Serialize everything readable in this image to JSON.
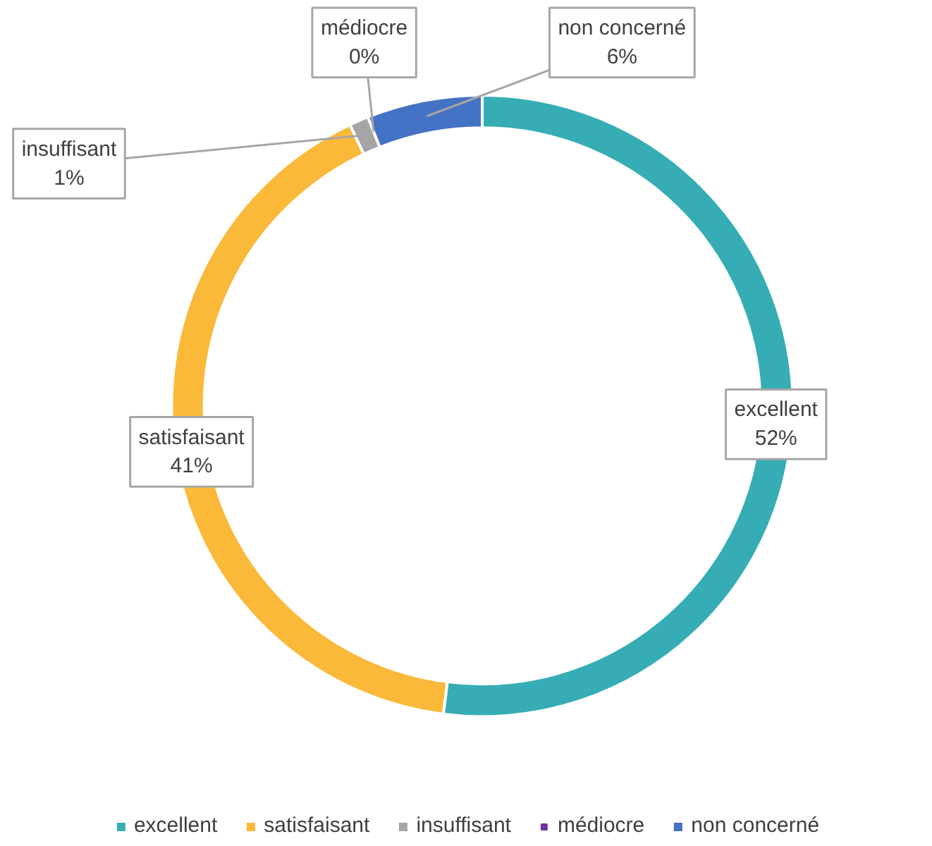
{
  "chart_data": {
    "type": "donut",
    "categories": [
      "excellent",
      "satisfaisant",
      "insuffisant",
      "médiocre",
      "non concerné"
    ],
    "values": [
      52,
      41,
      1,
      0,
      6
    ],
    "value_labels": [
      "52%",
      "41%",
      "1%",
      "0%",
      "6%"
    ],
    "colors": [
      "#36adb5",
      "#fbb93a",
      "#a5a5a5",
      "#7030a0",
      "#4472c4"
    ],
    "legend": "bottom"
  }
}
